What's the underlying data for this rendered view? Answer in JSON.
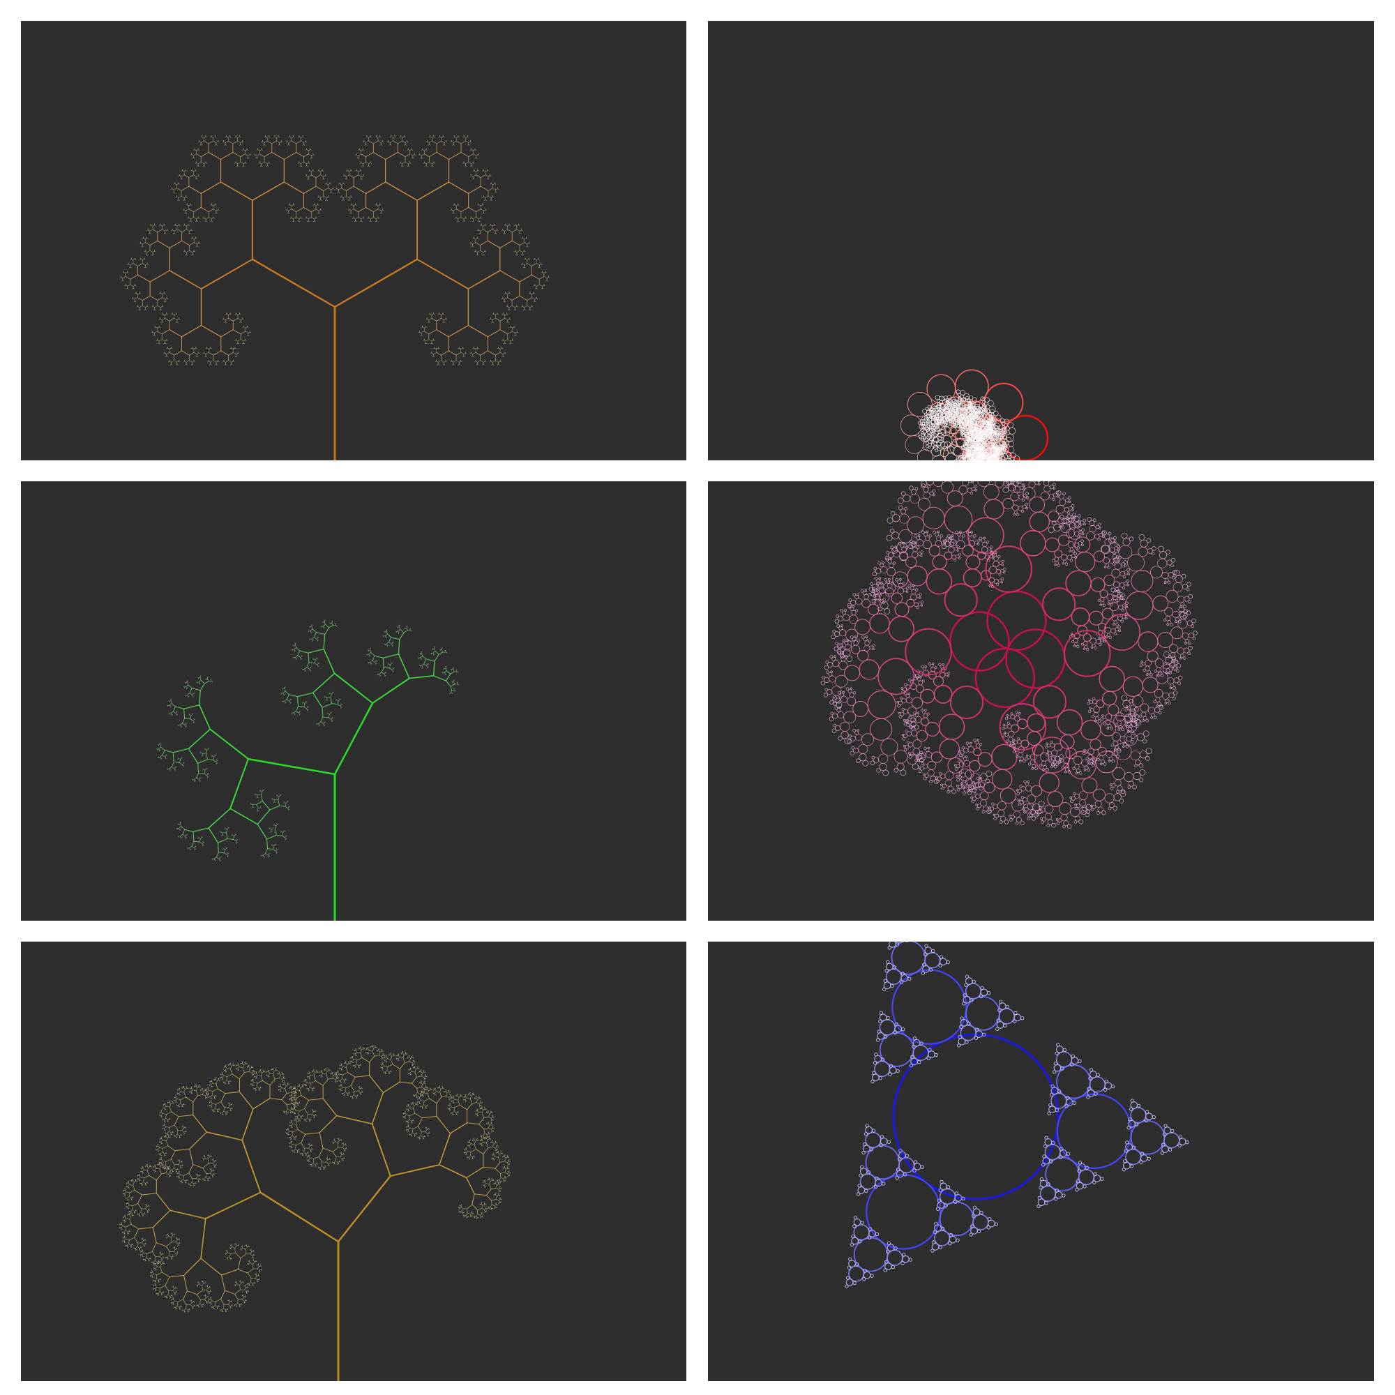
{
  "gallery": {
    "background": "#ffffff",
    "panel_background": "#2e2e2e",
    "panels": [
      {
        "kind": "branching-tree",
        "variant": "symmetric-hexagonal",
        "trunk_color": "#c9721c",
        "leaf_color": "#cdbf8e",
        "branch_angle_deg": 60,
        "depth": 10
      },
      {
        "kind": "circle-spiral-tree",
        "variant": "curly-cloud",
        "trunk_color": "#ee1111",
        "leaf_color": "#ffffff",
        "depth": 11
      },
      {
        "kind": "branching-tree",
        "variant": "square-spiral",
        "trunk_color": "#22dd22",
        "leaf_color": "#8fb48f",
        "branch_angle_deg": 80,
        "depth": 9
      },
      {
        "kind": "circle-tree",
        "variant": "three-armed-ring",
        "trunk_color": "#c2114f",
        "leaf_color": "#f2b8e6",
        "depth": 8
      },
      {
        "kind": "branching-tree",
        "variant": "asymmetric-canopy",
        "trunk_color": "#b88a18",
        "leaf_color": "#d7cb9a",
        "branch_angle_deg": 55,
        "depth": 11
      },
      {
        "kind": "circle-tree",
        "variant": "blue-snowflake-rings",
        "trunk_color": "#1a1aee",
        "leaf_color": "#e6e6ff",
        "depth": 6
      }
    ]
  }
}
